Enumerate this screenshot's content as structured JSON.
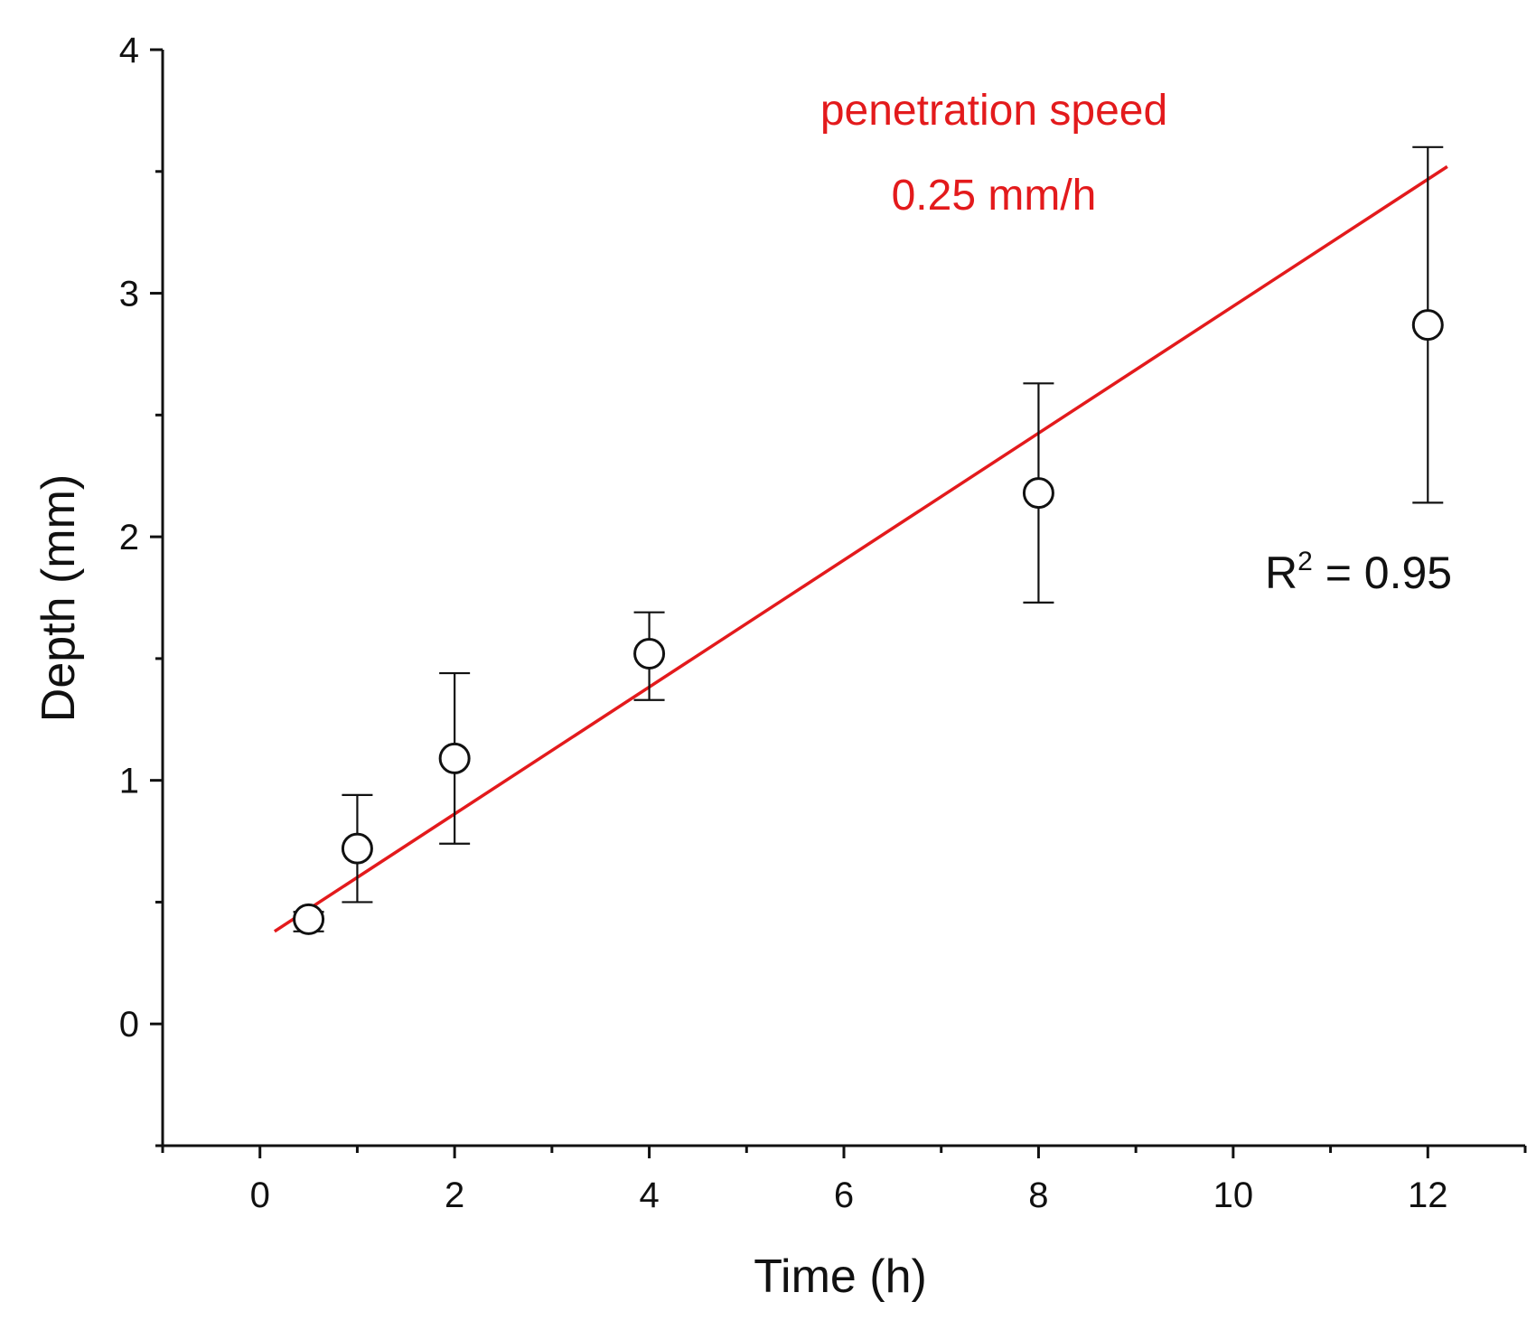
{
  "chart_data": {
    "type": "scatter",
    "title": "",
    "xlabel": "Time (h)",
    "ylabel": "Depth (mm)",
    "xlim": [
      -1,
      13
    ],
    "ylim": [
      -0.5,
      4
    ],
    "xticks": [
      0,
      2,
      4,
      6,
      8,
      10,
      12
    ],
    "yticks": [
      0,
      1,
      2,
      3,
      4
    ],
    "xtick_labels": [
      "0",
      "2",
      "4",
      "6",
      "8",
      "10",
      "12"
    ],
    "ytick_labels": [
      "0",
      "1",
      "2",
      "3",
      "4"
    ],
    "grid": false,
    "series": [
      {
        "name": "Depth",
        "marker": "open-circle",
        "x": [
          0.5,
          1,
          2,
          4,
          8,
          12
        ],
        "y": [
          0.43,
          0.72,
          1.09,
          1.52,
          2.18,
          2.87
        ],
        "err_low": [
          0.38,
          0.5,
          0.74,
          1.33,
          1.73,
          2.14
        ],
        "err_high": [
          0.46,
          0.94,
          1.44,
          1.69,
          2.63,
          3.6
        ]
      }
    ],
    "fit_line": {
      "x": [
        0.15,
        12.2
      ],
      "y": [
        0.38,
        3.52
      ],
      "color": "#e31a1c"
    },
    "annotations": {
      "speed_label": "penetration speed",
      "speed_value": "0.25 mm/h",
      "r2_prefix": "R",
      "r2_sup": "2",
      "r2_suffix": " = 0.95"
    },
    "colors": {
      "fit": "#e31a1c",
      "axis": "#111111",
      "marker": "#111111"
    }
  }
}
